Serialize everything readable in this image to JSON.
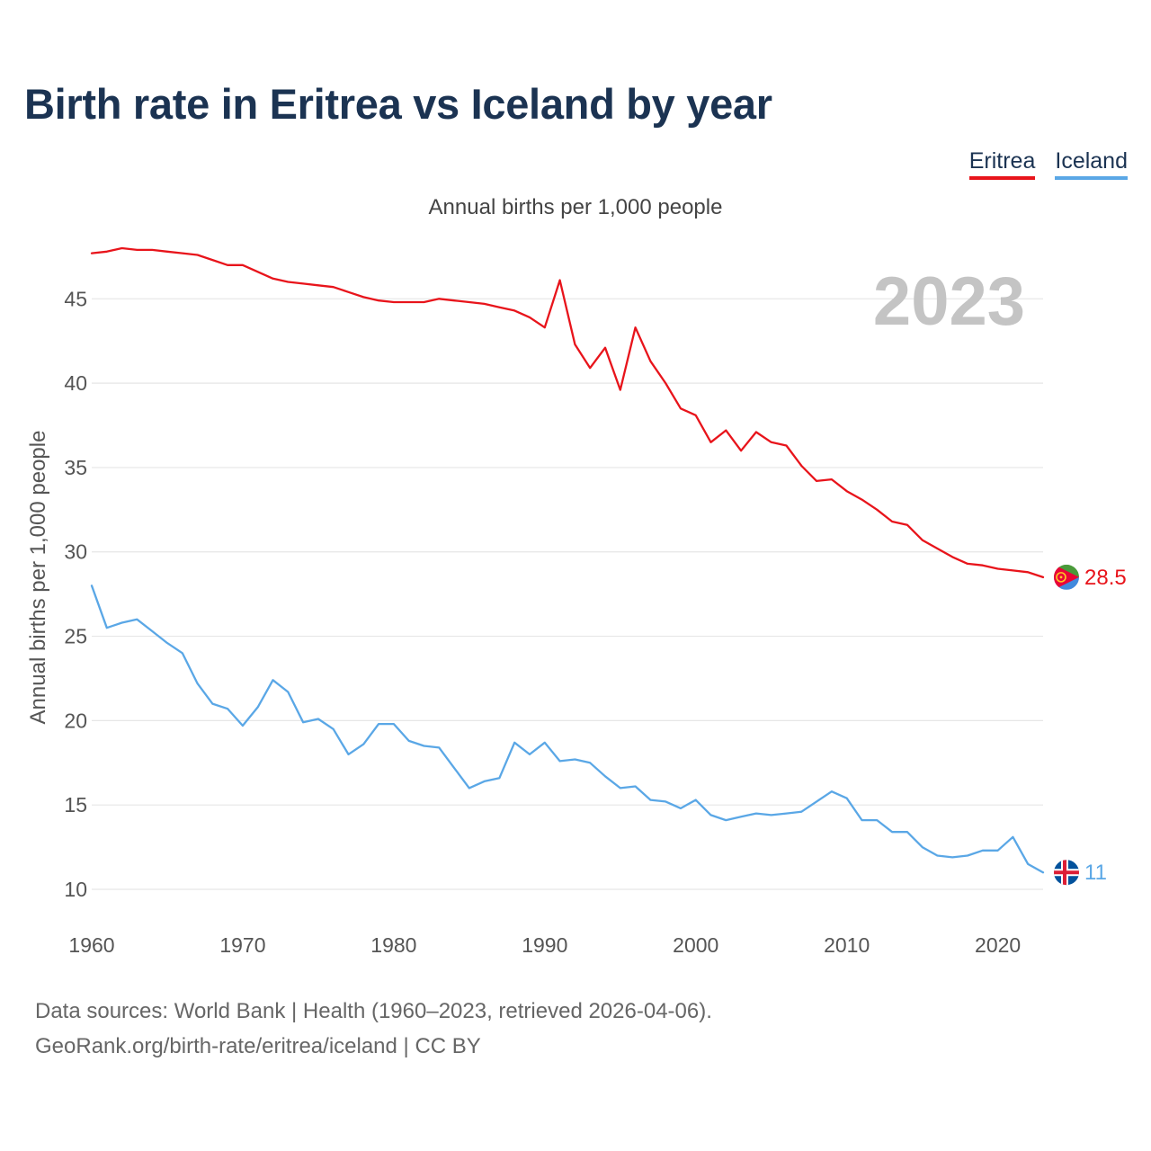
{
  "chart_data": {
    "type": "line",
    "title": "Birth rate in Eritrea vs Iceland by year",
    "subtitle": "Annual births per 1,000 people",
    "ylabel": "Annual births per 1,000 people",
    "xlabel": "",
    "year_label": "2023",
    "xlim": [
      1960,
      2023
    ],
    "ylim": [
      10,
      48
    ],
    "x_ticks": [
      1960,
      1970,
      1980,
      1990,
      2000,
      2010,
      2020
    ],
    "y_ticks": [
      10,
      15,
      20,
      25,
      30,
      35,
      40,
      45
    ],
    "grid": true,
    "legend_position": "top-right",
    "x": [
      1960,
      1961,
      1962,
      1963,
      1964,
      1965,
      1966,
      1967,
      1968,
      1969,
      1970,
      1971,
      1972,
      1973,
      1974,
      1975,
      1976,
      1977,
      1978,
      1979,
      1980,
      1981,
      1982,
      1983,
      1984,
      1985,
      1986,
      1987,
      1988,
      1989,
      1990,
      1991,
      1992,
      1993,
      1994,
      1995,
      1996,
      1997,
      1998,
      1999,
      2000,
      2001,
      2002,
      2003,
      2004,
      2005,
      2006,
      2007,
      2008,
      2009,
      2010,
      2011,
      2012,
      2013,
      2014,
      2015,
      2016,
      2017,
      2018,
      2019,
      2020,
      2021,
      2022,
      2023
    ],
    "series": [
      {
        "name": "Eritrea",
        "color": "#e8141b",
        "end_label": "28.5",
        "values": [
          47.7,
          47.8,
          48.0,
          47.9,
          47.9,
          47.8,
          47.7,
          47.6,
          47.3,
          47.0,
          47.0,
          46.6,
          46.2,
          46.0,
          45.9,
          45.8,
          45.7,
          45.4,
          45.1,
          44.9,
          44.8,
          44.8,
          44.8,
          45.0,
          44.9,
          44.8,
          44.7,
          44.5,
          44.3,
          43.9,
          43.3,
          46.1,
          42.3,
          40.9,
          42.1,
          39.6,
          43.3,
          41.3,
          40.0,
          38.5,
          38.1,
          36.5,
          37.2,
          36.0,
          37.1,
          36.5,
          36.3,
          35.1,
          34.2,
          34.3,
          33.6,
          33.1,
          32.5,
          31.8,
          31.6,
          30.7,
          30.2,
          29.7,
          29.3,
          29.2,
          29.0,
          28.9,
          28.8,
          28.5
        ]
      },
      {
        "name": "Iceland",
        "color": "#5aa7e6",
        "end_label": "11",
        "values": [
          28.0,
          25.5,
          25.8,
          26.0,
          25.3,
          24.6,
          24.0,
          22.2,
          21.0,
          20.7,
          19.7,
          20.8,
          22.4,
          21.7,
          19.9,
          20.1,
          19.5,
          18.0,
          18.6,
          19.8,
          19.8,
          18.8,
          18.5,
          18.4,
          17.2,
          16.0,
          16.4,
          16.6,
          18.7,
          18.0,
          18.7,
          17.6,
          17.7,
          17.5,
          16.7,
          16.0,
          16.1,
          15.3,
          15.2,
          14.8,
          15.3,
          14.4,
          14.1,
          14.3,
          14.5,
          14.4,
          14.5,
          14.6,
          15.2,
          15.8,
          15.4,
          14.1,
          14.1,
          13.4,
          13.4,
          12.5,
          12.0,
          11.9,
          12.0,
          12.3,
          12.3,
          13.1,
          11.5,
          11.0
        ]
      }
    ]
  },
  "footer": {
    "line1": "Data sources: World Bank | Health (1960–2023, retrieved 2026-04-06).",
    "line2": "GeoRank.org/birth-rate/eritrea/iceland | CC BY"
  }
}
